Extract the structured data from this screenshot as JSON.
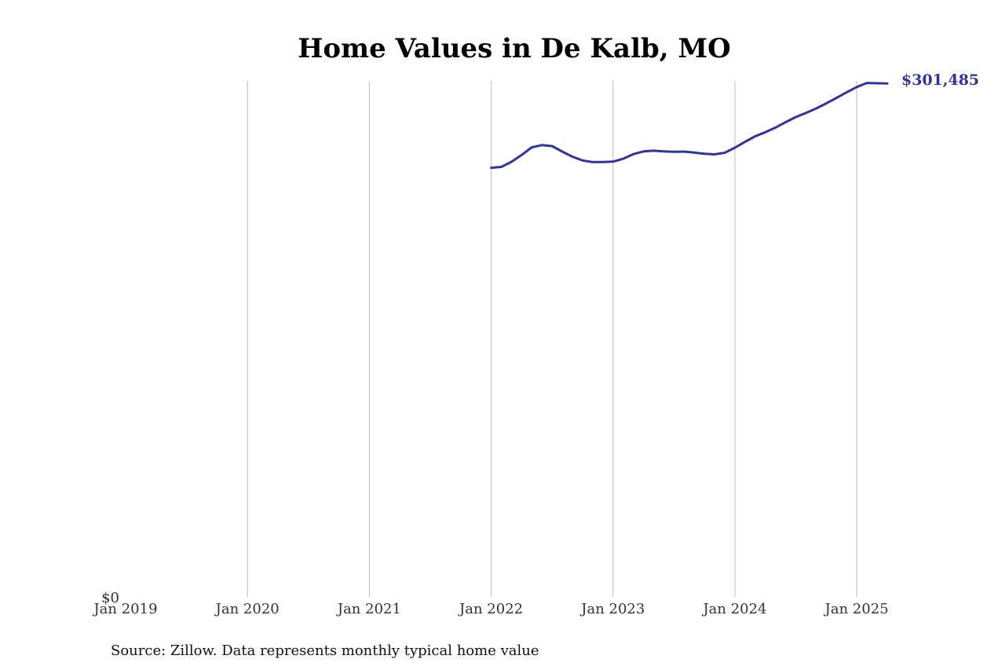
{
  "chart_data": {
    "type": "line",
    "title": "Home Values in De Kalb, MO",
    "xlabel": "",
    "ylabel": "",
    "x_tick_labels": [
      "Jan 2019",
      "Jan 2020",
      "Jan 2021",
      "Jan 2022",
      "Jan 2023",
      "Jan 2024",
      "Jan 2025"
    ],
    "y_tick_labels": [
      "$0"
    ],
    "xlim": [
      "2019-01",
      "2025-07"
    ],
    "ylim": [
      0,
      303000
    ],
    "grid": "vertical",
    "line_color": "#333399",
    "series": [
      {
        "x": [
          "2022-01",
          "2022-02",
          "2022-03",
          "2022-04",
          "2022-05",
          "2022-06",
          "2022-07",
          "2022-08",
          "2022-09",
          "2022-10",
          "2022-11",
          "2022-12",
          "2023-01",
          "2023-02",
          "2023-03",
          "2023-04",
          "2023-05",
          "2023-06",
          "2023-07",
          "2023-08",
          "2023-09",
          "2023-10",
          "2023-11",
          "2023-12",
          "2024-01",
          "2024-02",
          "2024-03",
          "2024-04",
          "2024-05",
          "2024-06",
          "2024-07",
          "2024-08",
          "2024-09",
          "2024-10",
          "2024-11",
          "2024-12",
          "2025-01",
          "2025-02",
          "2025-03",
          "2025-04"
        ],
        "values": [
          252000,
          252500,
          255500,
          259500,
          264000,
          265300,
          264700,
          261500,
          258500,
          256300,
          255300,
          255400,
          255600,
          257300,
          260000,
          261600,
          262000,
          261600,
          261400,
          261500,
          260900,
          260200,
          259900,
          260800,
          263800,
          267200,
          270500,
          272900,
          275600,
          278800,
          281800,
          284200,
          286800,
          289800,
          293000,
          296300,
          299400,
          301800,
          301600,
          301485
        ]
      }
    ],
    "end_label": "$301,485",
    "source": "Source: Zillow. Data represents monthly typical home value"
  }
}
